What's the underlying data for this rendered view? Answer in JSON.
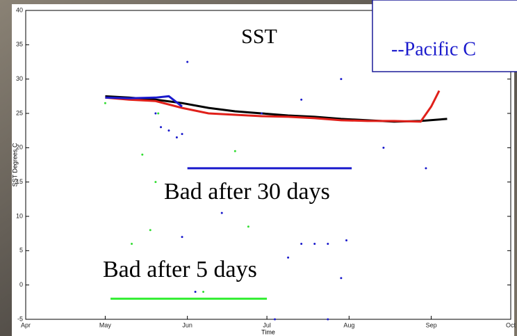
{
  "chart_data": {
    "type": "scatter",
    "title": "SST",
    "xlabel": "Time",
    "ylabel": "SST Degrees C",
    "xlim": [
      91,
      274
    ],
    "ylim": [
      -5,
      40
    ],
    "xticks": [
      {
        "value": 91,
        "label": "Apr"
      },
      {
        "value": 121,
        "label": "May"
      },
      {
        "value": 152,
        "label": "Jun"
      },
      {
        "value": 182,
        "label": "Jul"
      },
      {
        "value": 213,
        "label": "Aug"
      },
      {
        "value": 244,
        "label": "Sep"
      },
      {
        "value": 274,
        "label": "Oct"
      }
    ],
    "yticks": [
      -5,
      0,
      5,
      10,
      15,
      20,
      25,
      30,
      35,
      40
    ],
    "annotations": [
      "--Pacific C",
      "Bad after 30 days",
      "Bad after 5 days"
    ],
    "series": [
      {
        "color": "#000000",
        "style": "line",
        "x": [
          121,
          130,
          140,
          150,
          160,
          170,
          180,
          190,
          200,
          210,
          220,
          230,
          240,
          250
        ],
        "values": [
          27.5,
          27.3,
          27,
          26.5,
          25.8,
          25.3,
          25,
          24.7,
          24.5,
          24.2,
          24,
          23.8,
          23.9,
          24.2
        ]
      },
      {
        "color": "#e0201a",
        "style": "line",
        "x": [
          121,
          130,
          140,
          150,
          160,
          170,
          180,
          190,
          200,
          210,
          220,
          230,
          240,
          244,
          247
        ],
        "values": [
          27.3,
          27,
          26.8,
          25.8,
          25,
          24.8,
          24.6,
          24.5,
          24.3,
          24,
          23.9,
          23.9,
          23.8,
          26,
          28.3
        ]
      },
      {
        "color": "#1a1acc",
        "style": "line",
        "x": [
          121,
          130,
          140,
          145,
          150
        ],
        "values": [
          27.3,
          27.2,
          27.3,
          27.5,
          26
        ]
      },
      {
        "color": "#1a1acc",
        "style": "points",
        "x": [
          140,
          142,
          145,
          148,
          150,
          152,
          180,
          195,
          210,
          226,
          242,
          165,
          150,
          155,
          195,
          200,
          205,
          212,
          210,
          190,
          185,
          205
        ],
        "values": [
          25,
          23,
          22.5,
          21.5,
          22,
          32.5,
          25,
          27,
          30,
          20,
          17,
          10.5,
          7,
          -1,
          6,
          6,
          6,
          6.5,
          1,
          4,
          -5,
          -5
        ]
      },
      {
        "color": "#33dd33",
        "style": "points",
        "x": [
          121,
          135,
          138,
          140,
          158,
          170,
          175,
          131,
          141
        ],
        "values": [
          26.5,
          19,
          8,
          15,
          -1,
          19.5,
          8.5,
          6,
          25
        ]
      },
      {
        "color": "#1a1acc",
        "style": "line",
        "x": [
          152,
          214
        ],
        "values": [
          17,
          17
        ]
      },
      {
        "color": "#33ee33",
        "style": "line",
        "x": [
          123,
          182
        ],
        "values": [
          -2,
          -2
        ]
      }
    ]
  }
}
